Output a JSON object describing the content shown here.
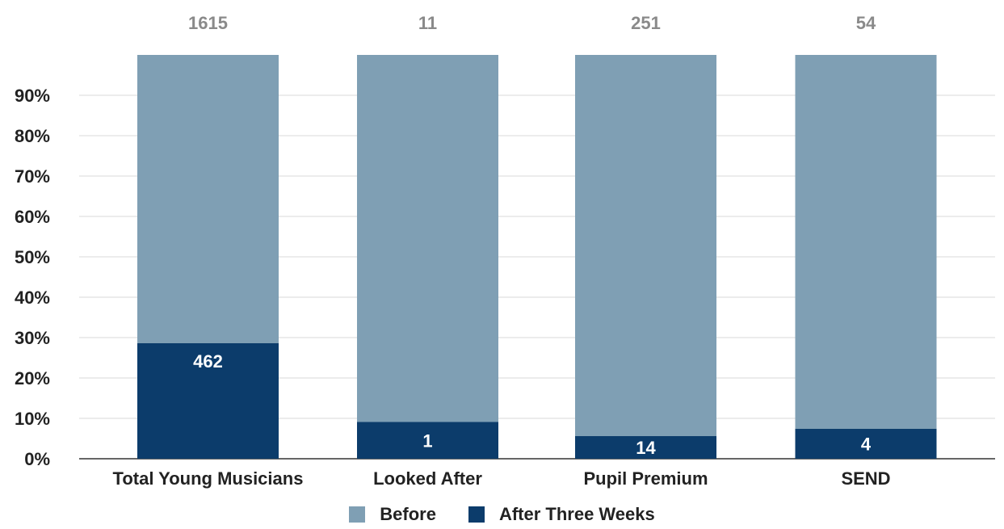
{
  "chart_data": {
    "type": "bar",
    "stacked": true,
    "categories": [
      "Total Young Musicians",
      "Looked After",
      "Pupil Premium",
      "SEND"
    ],
    "totals": [
      "1615",
      "11",
      "251",
      "54"
    ],
    "series": [
      {
        "name": "Before",
        "color": "#7f9fb4",
        "values_pct": [
          71.4,
          90.9,
          94.4,
          92.6
        ]
      },
      {
        "name": "After Three Weeks",
        "color": "#0c3c6b",
        "values_pct": [
          28.6,
          9.1,
          5.6,
          7.4
        ],
        "labels": [
          "462",
          "1",
          "14",
          "4"
        ]
      }
    ],
    "y_ticks": [
      "0%",
      "10%",
      "20%",
      "30%",
      "40%",
      "50%",
      "60%",
      "70%",
      "80%",
      "90%"
    ],
    "ylim": [
      0,
      100
    ],
    "grid": true,
    "legend_position": "bottom"
  }
}
